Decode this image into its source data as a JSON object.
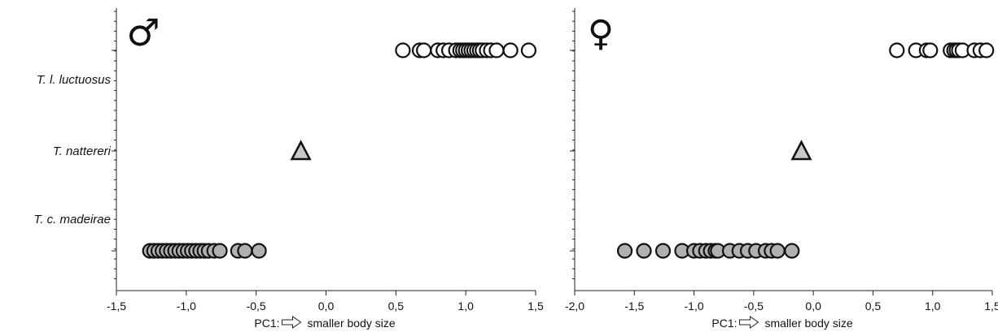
{
  "chart_data": [
    {
      "type": "scatter",
      "panel": "male",
      "sex_symbol": "♂",
      "categories": [
        "T. l. luctuosus",
        "T. nattereri",
        "T. c. madeirae"
      ],
      "xlabel_prefix": "PC1:",
      "xlabel_suffix": "smaller body size",
      "xlim": [
        -1.5,
        1.5
      ],
      "xticks": [
        -1.5,
        -1.0,
        -0.5,
        0.0,
        0.5,
        1.0,
        1.5
      ],
      "xtick_labels": [
        "-1,5",
        "-1,0",
        "-0,5",
        "0,0",
        "0,5",
        "1,0",
        "1,5"
      ],
      "grid": false,
      "series": [
        {
          "category": "T. l. luctuosus",
          "marker": "circle",
          "fill": "#ffffff",
          "x": [
            0.55,
            0.67,
            0.7,
            0.8,
            0.84,
            0.88,
            0.93,
            0.96,
            0.98,
            1.0,
            1.02,
            1.04,
            1.06,
            1.08,
            1.1,
            1.12,
            1.15,
            1.18,
            1.22,
            1.32,
            1.45
          ]
        },
        {
          "category": "T. nattereri",
          "marker": "triangle",
          "fill": "#c8c8c8",
          "x": [
            -0.18
          ]
        },
        {
          "category": "T. c. madeirae",
          "marker": "circle",
          "fill": "#b0b0b0",
          "x": [
            -1.26,
            -1.23,
            -1.2,
            -1.17,
            -1.14,
            -1.11,
            -1.08,
            -1.05,
            -1.02,
            -0.99,
            -0.96,
            -0.93,
            -0.9,
            -0.87,
            -0.84,
            -0.8,
            -0.76,
            -0.63,
            -0.58,
            -0.48
          ]
        }
      ]
    },
    {
      "type": "scatter",
      "panel": "female",
      "sex_symbol": "♀",
      "categories": [
        "T. l. luctuosus",
        "T. nattereri",
        "T. c. madeirae"
      ],
      "xlabel_prefix": "PC1:",
      "xlabel_suffix": "smaller body size",
      "xlim": [
        -2.0,
        1.5
      ],
      "xticks": [
        -2.0,
        -1.5,
        -1.0,
        -0.5,
        0.0,
        0.5,
        1.0,
        1.5
      ],
      "xtick_labels": [
        "-2,0",
        "-1,5",
        "-1,0",
        "-0,5",
        "0,0",
        "0,5",
        "1,0",
        "1,5"
      ],
      "grid": false,
      "series": [
        {
          "category": "T. l. luctuosus",
          "marker": "circle",
          "fill": "#ffffff",
          "x": [
            0.7,
            0.86,
            0.95,
            0.98,
            1.15,
            1.18,
            1.2,
            1.22,
            1.25,
            1.35,
            1.4,
            1.45
          ]
        },
        {
          "category": "T. nattereri",
          "marker": "triangle",
          "fill": "#c8c8c8",
          "x": [
            -0.1
          ]
        },
        {
          "category": "T. c. madeirae",
          "marker": "circle",
          "fill": "#b0b0b0",
          "x": [
            -1.58,
            -1.42,
            -1.26,
            -1.1,
            -1.0,
            -0.95,
            -0.9,
            -0.86,
            -0.82,
            -0.8,
            -0.7,
            -0.62,
            -0.55,
            -0.48,
            -0.4,
            -0.35,
            -0.3,
            -0.18
          ]
        }
      ]
    }
  ]
}
